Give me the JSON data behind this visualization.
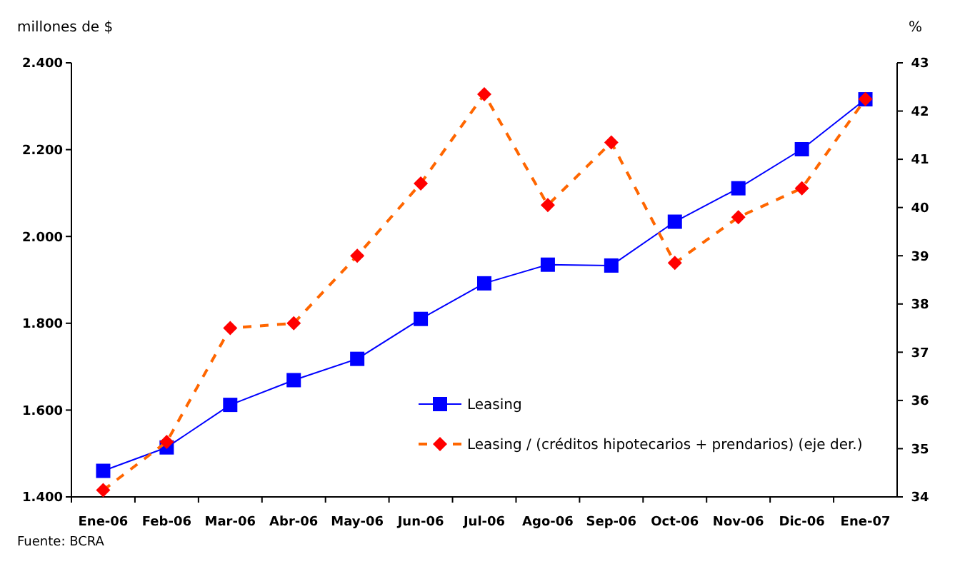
{
  "chart_data": {
    "type": "line",
    "ylabel": "millones de $",
    "y2label": "%",
    "annotations": [
      "Fuente: BCRA"
    ],
    "categories": [
      "Ene-06",
      "Feb-06",
      "Mar-06",
      "Abr-06",
      "May-06",
      "Jun-06",
      "Jul-06",
      "Ago-06",
      "Sep-06",
      "Oct-06",
      "Nov-06",
      "Dic-06",
      "Ene-07"
    ],
    "ylim": [
      1400,
      2400
    ],
    "yticks": [
      {
        "value": 1400,
        "label": "1.400"
      },
      {
        "value": 1600,
        "label": "1.600"
      },
      {
        "value": 1800,
        "label": "1.800"
      },
      {
        "value": 2000,
        "label": "2.000"
      },
      {
        "value": 2200,
        "label": "2.200"
      },
      {
        "value": 2400,
        "label": "2.400"
      }
    ],
    "y2lim": [
      34,
      43
    ],
    "y2ticks": [
      34,
      35,
      36,
      37,
      38,
      39,
      40,
      41,
      42,
      43
    ],
    "grid": false,
    "legend": "bottom right",
    "series": [
      {
        "name": "Leasing",
        "color": "#0000ff",
        "marker": "square",
        "line_style": "solid",
        "values": [
          1460,
          1514,
          1612,
          1669,
          1718,
          1810,
          1892,
          1935,
          1933,
          2034,
          2111,
          2201,
          2316
        ]
      },
      {
        "name": "Leasing / (créditos hipotecarios + prendarios) (eje der.)",
        "color": "#ff0000",
        "marker": "diamond",
        "line_style": "dashed",
        "axis": "y2",
        "values": [
          34.14,
          35.14,
          37.5,
          37.6,
          39.0,
          40.5,
          42.35,
          40.05,
          41.35,
          38.85,
          39.8,
          40.4,
          42.25
        ]
      }
    ]
  }
}
